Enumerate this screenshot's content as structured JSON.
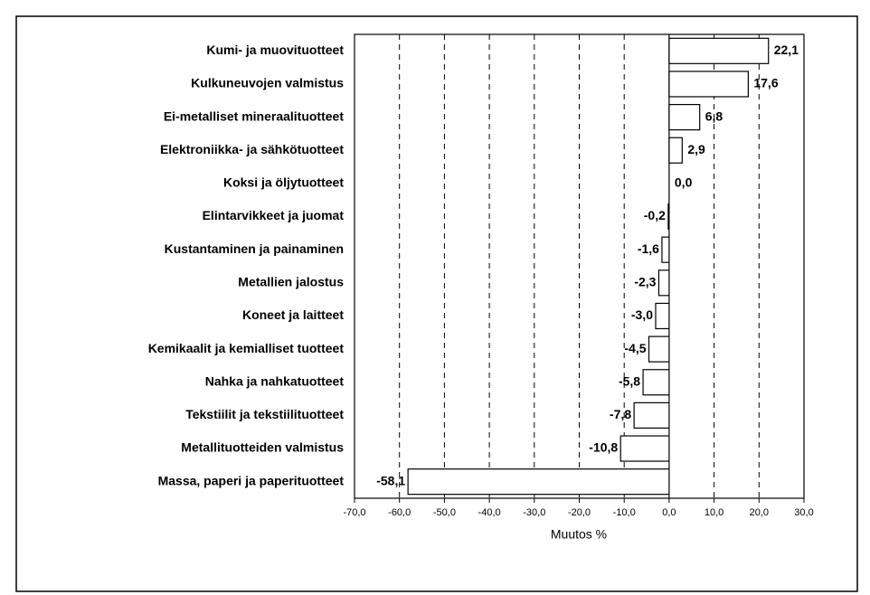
{
  "chart_data": {
    "type": "barh",
    "categories": [
      "Kumi- ja muovituotteet",
      "Kulkuneuvojen valmistus",
      "Ei-metalliset mineraalituotteet",
      "Elektroniikka- ja sähkötuotteet",
      "Koksi ja öljytuotteet",
      "Elintarvikkeet ja juomat",
      "Kustantaminen ja painaminen",
      "Metallien jalostus",
      "Koneet ja laitteet",
      "Kemikaalit ja kemialliset tuotteet",
      "Nahka ja nahkatuotteet",
      "Tekstiilit ja tekstiilituotteet",
      "Metallituotteiden valmistus",
      "Massa, paperi ja paperituotteet"
    ],
    "values": [
      22.1,
      17.6,
      6.8,
      2.9,
      0.0,
      -0.2,
      -1.6,
      -2.3,
      -3.0,
      -4.5,
      -5.8,
      -7.8,
      -10.8,
      -58.1
    ],
    "value_labels": [
      "22,1",
      "17,6",
      "6,8",
      "2,9",
      "0,0",
      "-0,2",
      "-1,6",
      "-2,3",
      "-3,0",
      "-4,5",
      "-5,8",
      "-7,8",
      "-10,8",
      "-58,1"
    ],
    "color": "#ffffff",
    "xlabel": "Muutos %",
    "xlim": [
      -70,
      30
    ],
    "xticks": [
      {
        "value": -70,
        "label": "-70,0"
      },
      {
        "value": -60,
        "label": "-60,0"
      },
      {
        "value": -50,
        "label": "-50,0"
      },
      {
        "value": -40,
        "label": "-40,0"
      },
      {
        "value": -30,
        "label": "-30,0"
      },
      {
        "value": -20,
        "label": "-20,0"
      },
      {
        "value": -10,
        "label": "-10,0"
      },
      {
        "value": 0,
        "label": "0,0"
      },
      {
        "value": 10,
        "label": "10,0"
      },
      {
        "value": 20,
        "label": "20,0"
      },
      {
        "value": 30,
        "label": "30,0"
      }
    ],
    "grid": true
  }
}
